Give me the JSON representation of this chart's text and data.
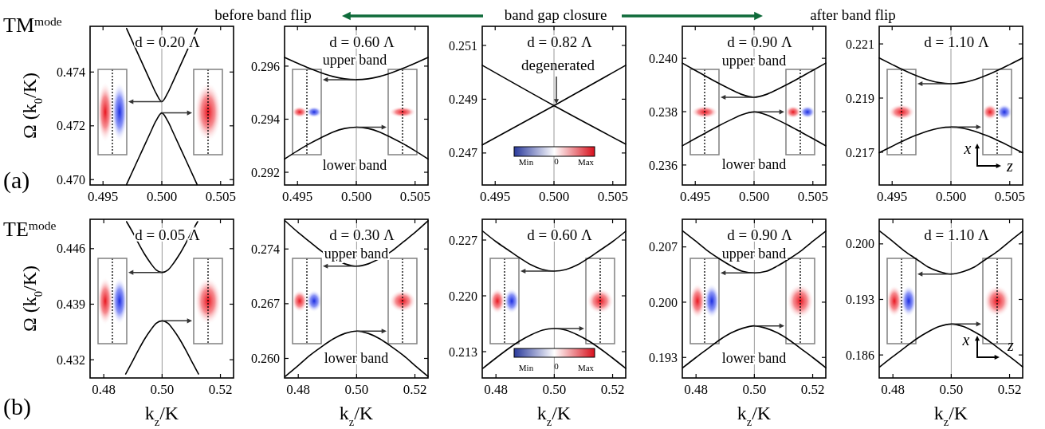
{
  "chart_data": [
    {
      "type": "line",
      "title": "d = 0.20 Λ",
      "ylabel": "Ω (k$_{0}$/K)",
      "xlim": [
        0.4939,
        0.5061
      ],
      "ylim": [
        0.4698,
        0.4757
      ],
      "xticks": [
        {
          "value": 0.495,
          "label": "0.495"
        },
        {
          "value": 0.5,
          "label": "0.500"
        },
        {
          "value": 0.505,
          "label": "0.505"
        }
      ],
      "yticks": [
        {
          "value": 0.47,
          "label": "0.470"
        },
        {
          "value": 0.472,
          "label": "0.472"
        },
        {
          "value": 0.474,
          "label": "0.474"
        }
      ],
      "series": [
        {
          "color": "#000000",
          "x": [
            0.497,
            0.498,
            0.499,
            0.4995,
            0.5,
            0.5005,
            0.501,
            0.502,
            0.503
          ],
          "values": [
            0.47562,
            0.47465,
            0.47369,
            0.47322,
            0.4729,
            0.47322,
            0.47369,
            0.47465,
            0.47562
          ]
        },
        {
          "color": "#000000",
          "x": [
            0.497,
            0.498,
            0.499,
            0.4995,
            0.5,
            0.5005,
            0.501,
            0.502,
            0.503
          ],
          "values": [
            0.46982,
            0.47077,
            0.47172,
            0.47218,
            0.47248,
            0.47218,
            0.47172,
            0.47077,
            0.46982
          ]
        }
      ],
      "ref_lines": [
        {
          "axis": "x",
          "value": 0.5,
          "color": "#999999"
        }
      ],
      "annotations": [
        "TM$^{mode}$",
        "(a)",
        "before band flip"
      ]
    },
    {
      "type": "line",
      "title": "d = 0.60 Λ",
      "xlim": [
        0.4939,
        0.5061
      ],
      "ylim": [
        0.29152,
        0.2975
      ],
      "xticks": [
        {
          "value": 0.495,
          "label": "0.495"
        },
        {
          "value": 0.5,
          "label": "0.500"
        },
        {
          "value": 0.505,
          "label": "0.505"
        }
      ],
      "yticks": [
        {
          "value": 0.292,
          "label": "0.292"
        },
        {
          "value": 0.294,
          "label": "0.294"
        },
        {
          "value": 0.296,
          "label": "0.296"
        }
      ],
      "series": [
        {
          "color": "#000000",
          "x": [
            0.4939,
            0.495,
            0.496,
            0.497,
            0.498,
            0.499,
            0.5,
            0.501,
            0.502,
            0.503,
            0.504,
            0.505,
            0.5061
          ],
          "values": [
            0.29633,
            0.29611,
            0.29592,
            0.29575,
            0.29561,
            0.29552,
            0.29549,
            0.29552,
            0.29561,
            0.29575,
            0.29592,
            0.29611,
            0.29633
          ]
        },
        {
          "color": "#000000",
          "x": [
            0.4939,
            0.495,
            0.496,
            0.497,
            0.498,
            0.499,
            0.5,
            0.501,
            0.502,
            0.503,
            0.504,
            0.505,
            0.5061
          ],
          "values": [
            0.2925,
            0.29281,
            0.29307,
            0.2933,
            0.29351,
            0.29365,
            0.2937,
            0.29365,
            0.29351,
            0.2933,
            0.29307,
            0.29281,
            0.2925
          ]
        }
      ],
      "ref_lines": [
        {
          "axis": "x",
          "value": 0.5,
          "color": "#999999"
        }
      ],
      "annotations": [
        "upper band",
        "lower band"
      ]
    },
    {
      "type": "line",
      "title": "d = 0.82 Λ",
      "xlim": [
        0.4939,
        0.5061
      ],
      "ylim": [
        0.24581,
        0.25171
      ],
      "xticks": [
        {
          "value": 0.495,
          "label": "0.495"
        },
        {
          "value": 0.5,
          "label": "0.500"
        },
        {
          "value": 0.505,
          "label": "0.505"
        }
      ],
      "yticks": [
        {
          "value": 0.247,
          "label": "0.247"
        },
        {
          "value": 0.249,
          "label": "0.249"
        },
        {
          "value": 0.251,
          "label": "0.251"
        }
      ],
      "series": [
        {
          "color": "#000000",
          "x": [
            0.4939,
            0.5,
            0.5061
          ],
          "values": [
            0.25026,
            0.24876,
            0.24733
          ]
        },
        {
          "color": "#000000",
          "x": [
            0.4939,
            0.5,
            0.5061
          ],
          "values": [
            0.2473,
            0.24876,
            0.25026
          ]
        }
      ],
      "ref_lines": [
        {
          "axis": "x",
          "value": 0.5,
          "color": "#999999"
        }
      ],
      "annotations": [
        "band gap closure",
        "degenerated",
        "Min",
        "0",
        "Max"
      ]
    },
    {
      "type": "line",
      "title": "d = 0.90 Λ",
      "xlim": [
        0.4939,
        0.5061
      ],
      "ylim": [
        0.23525,
        0.2412
      ],
      "xticks": [
        {
          "value": 0.495,
          "label": "0.495"
        },
        {
          "value": 0.5,
          "label": "0.500"
        },
        {
          "value": 0.505,
          "label": "0.505"
        }
      ],
      "yticks": [
        {
          "value": 0.236,
          "label": "0.236"
        },
        {
          "value": 0.238,
          "label": "0.238"
        },
        {
          "value": 0.24,
          "label": "0.240"
        }
      ],
      "series": [
        {
          "color": "#000000",
          "x": [
            0.4939,
            0.495,
            0.496,
            0.497,
            0.498,
            0.499,
            0.5,
            0.501,
            0.502,
            0.503,
            0.504,
            0.505,
            0.5061
          ],
          "values": [
            0.23982,
            0.23955,
            0.2393,
            0.23906,
            0.23884,
            0.23864,
            0.23854,
            0.23864,
            0.23884,
            0.23906,
            0.2393,
            0.23955,
            0.23982
          ]
        },
        {
          "color": "#000000",
          "x": [
            0.4939,
            0.495,
            0.496,
            0.497,
            0.498,
            0.499,
            0.5,
            0.501,
            0.502,
            0.503,
            0.504,
            0.505,
            0.5061
          ],
          "values": [
            0.23672,
            0.23699,
            0.23723,
            0.23747,
            0.23769,
            0.23789,
            0.23799,
            0.23789,
            0.23769,
            0.23747,
            0.23723,
            0.23699,
            0.23672
          ]
        }
      ],
      "ref_lines": [
        {
          "axis": "x",
          "value": 0.5,
          "color": "#999999"
        }
      ],
      "annotations": [
        "upper band",
        "lower band"
      ]
    },
    {
      "type": "line",
      "title": "d = 1.10 Λ",
      "xlim": [
        0.4939,
        0.5061
      ],
      "ylim": [
        0.21579,
        0.22165
      ],
      "xticks": [
        {
          "value": 0.495,
          "label": "0.495"
        },
        {
          "value": 0.5,
          "label": "0.500"
        },
        {
          "value": 0.505,
          "label": "0.505"
        }
      ],
      "yticks": [
        {
          "value": 0.217,
          "label": "0.217"
        },
        {
          "value": 0.219,
          "label": "0.219"
        },
        {
          "value": 0.221,
          "label": "0.221"
        }
      ],
      "series": [
        {
          "color": "#000000",
          "x": [
            0.4939,
            0.495,
            0.496,
            0.497,
            0.498,
            0.499,
            0.5,
            0.501,
            0.502,
            0.503,
            0.504,
            0.505,
            0.5061
          ],
          "values": [
            0.22048,
            0.22024,
            0.22003,
            0.21984,
            0.21968,
            0.21957,
            0.21953,
            0.21957,
            0.21968,
            0.21984,
            0.22003,
            0.22024,
            0.22048
          ]
        },
        {
          "color": "#000000",
          "x": [
            0.4939,
            0.495,
            0.496,
            0.497,
            0.498,
            0.499,
            0.5,
            0.501,
            0.502,
            0.503,
            0.504,
            0.505,
            0.5061
          ],
          "values": [
            0.21698,
            0.21722,
            0.21743,
            0.21762,
            0.21778,
            0.21789,
            0.21793,
            0.21789,
            0.21778,
            0.21762,
            0.21743,
            0.21722,
            0.21698
          ]
        }
      ],
      "ref_lines": [
        {
          "axis": "x",
          "value": 0.5,
          "color": "#999999"
        }
      ],
      "annotations": [
        "after band flip",
        "x",
        "z"
      ]
    },
    {
      "type": "line",
      "title": "d = 0.05 Λ",
      "ylabel": "Ω (k$_{0}$/K)",
      "xlabel": "k$_{z}$/K",
      "xlim": [
        0.4753,
        0.5245
      ],
      "ylim": [
        0.4297,
        0.4497
      ],
      "xticks": [
        {
          "value": 0.48,
          "label": "0.48"
        },
        {
          "value": 0.5,
          "label": "0.50"
        },
        {
          "value": 0.52,
          "label": "0.52"
        }
      ],
      "yticks": [
        {
          "value": 0.432,
          "label": "0.432"
        },
        {
          "value": 0.439,
          "label": "0.439"
        },
        {
          "value": 0.446,
          "label": "0.446"
        }
      ],
      "series": [
        {
          "color": "#000000",
          "x": [
            0.4878,
            0.49,
            0.492,
            0.494,
            0.496,
            0.498,
            0.5,
            0.502,
            0.504,
            0.506,
            0.508,
            0.51,
            0.5122
          ],
          "values": [
            0.4494,
            0.448,
            0.4466,
            0.4453,
            0.4442,
            0.4433,
            0.443,
            0.4433,
            0.4442,
            0.4453,
            0.4466,
            0.448,
            0.4494
          ]
        },
        {
          "color": "#000000",
          "x": [
            0.4875,
            0.49,
            0.492,
            0.494,
            0.496,
            0.498,
            0.5,
            0.502,
            0.504,
            0.506,
            0.508,
            0.51,
            0.5125
          ],
          "values": [
            0.4302,
            0.4319,
            0.4333,
            0.4346,
            0.4357,
            0.4366,
            0.4369,
            0.4366,
            0.4357,
            0.4346,
            0.4333,
            0.4319,
            0.4302
          ]
        }
      ],
      "ref_lines": [
        {
          "axis": "x",
          "value": 0.5,
          "color": "#999999"
        }
      ],
      "annotations": [
        "TE$^{mode}$",
        "(b)"
      ]
    },
    {
      "type": "line",
      "title": "d = 0.30 Λ",
      "xlabel": "k$_{z}$/K",
      "xlim": [
        0.4753,
        0.5245
      ],
      "ylim": [
        0.2575,
        0.2778
      ],
      "xticks": [
        {
          "value": 0.48,
          "label": "0.48"
        },
        {
          "value": 0.5,
          "label": "0.50"
        },
        {
          "value": 0.52,
          "label": "0.52"
        }
      ],
      "yticks": [
        {
          "value": 0.26,
          "label": "0.260"
        },
        {
          "value": 0.267,
          "label": "0.267"
        },
        {
          "value": 0.274,
          "label": "0.274"
        }
      ],
      "series": [
        {
          "color": "#000000",
          "x": [
            0.4755,
            0.48,
            0.484,
            0.488,
            0.492,
            0.496,
            0.5,
            0.504,
            0.508,
            0.512,
            0.516,
            0.52,
            0.5245
          ],
          "values": [
            0.2776,
            0.2761,
            0.2749,
            0.2737,
            0.2728,
            0.2721,
            0.2718,
            0.2721,
            0.2728,
            0.2737,
            0.2749,
            0.2761,
            0.2776
          ]
        },
        {
          "color": "#000000",
          "x": [
            0.4755,
            0.48,
            0.484,
            0.488,
            0.492,
            0.496,
            0.5,
            0.504,
            0.508,
            0.512,
            0.516,
            0.52,
            0.5245
          ],
          "values": [
            0.2577,
            0.2591,
            0.2604,
            0.2615,
            0.2625,
            0.2632,
            0.2635,
            0.2632,
            0.2625,
            0.2615,
            0.2604,
            0.2591,
            0.2577
          ]
        }
      ],
      "ref_lines": [
        {
          "axis": "x",
          "value": 0.5,
          "color": "#999999"
        }
      ],
      "annotations": [
        "upper band",
        "lower band"
      ]
    },
    {
      "type": "line",
      "title": "d = 0.60 Λ",
      "xlabel": "k$_{z}$/K",
      "xlim": [
        0.4753,
        0.5245
      ],
      "ylim": [
        0.2097,
        0.2296
      ],
      "xticks": [
        {
          "value": 0.48,
          "label": "0.48"
        },
        {
          "value": 0.5,
          "label": "0.50"
        },
        {
          "value": 0.52,
          "label": "0.52"
        }
      ],
      "yticks": [
        {
          "value": 0.213,
          "label": "0.213"
        },
        {
          "value": 0.22,
          "label": "0.220"
        },
        {
          "value": 0.227,
          "label": "0.227"
        }
      ],
      "series": [
        {
          "color": "#000000",
          "x": [
            0.4755,
            0.48,
            0.484,
            0.488,
            0.492,
            0.496,
            0.5,
            0.504,
            0.508,
            0.512,
            0.516,
            0.52,
            0.5245
          ],
          "values": [
            0.2281,
            0.2268,
            0.2258,
            0.2248,
            0.2239,
            0.2233,
            0.2231,
            0.2233,
            0.2239,
            0.2248,
            0.2258,
            0.2268,
            0.2281
          ]
        },
        {
          "color": "#000000",
          "x": [
            0.4755,
            0.48,
            0.484,
            0.488,
            0.492,
            0.496,
            0.5,
            0.504,
            0.508,
            0.512,
            0.516,
            0.52,
            0.5245
          ],
          "values": [
            0.2109,
            0.2122,
            0.2133,
            0.2143,
            0.2151,
            0.2157,
            0.2159,
            0.2157,
            0.2151,
            0.2143,
            0.2133,
            0.2122,
            0.2109
          ]
        }
      ],
      "ref_lines": [
        {
          "axis": "x",
          "value": 0.5,
          "color": "#999999"
        }
      ],
      "annotations": [
        "Min",
        "0",
        "Max"
      ]
    },
    {
      "type": "line",
      "title": "d = 0.90 Λ",
      "xlabel": "k$_{z}$/K",
      "xlim": [
        0.4753,
        0.5245
      ],
      "ylim": [
        0.1904,
        0.2105
      ],
      "xticks": [
        {
          "value": 0.48,
          "label": "0.48"
        },
        {
          "value": 0.5,
          "label": "0.50"
        },
        {
          "value": 0.52,
          "label": "0.52"
        }
      ],
      "yticks": [
        {
          "value": 0.193,
          "label": "0.193"
        },
        {
          "value": 0.2,
          "label": "0.200"
        },
        {
          "value": 0.207,
          "label": "0.207"
        }
      ],
      "series": [
        {
          "color": "#000000",
          "x": [
            0.4755,
            0.48,
            0.484,
            0.488,
            0.492,
            0.496,
            0.5,
            0.504,
            0.508,
            0.512,
            0.516,
            0.52,
            0.5245
          ],
          "values": [
            0.209,
            0.2077,
            0.2065,
            0.2055,
            0.2046,
            0.2039,
            0.2037,
            0.2039,
            0.2046,
            0.2055,
            0.2065,
            0.2077,
            0.209
          ]
        },
        {
          "color": "#000000",
          "x": [
            0.4755,
            0.48,
            0.484,
            0.488,
            0.492,
            0.496,
            0.5,
            0.504,
            0.508,
            0.512,
            0.516,
            0.52,
            0.5245
          ],
          "values": [
            0.1917,
            0.193,
            0.1941,
            0.1952,
            0.1961,
            0.1967,
            0.197,
            0.1967,
            0.1961,
            0.1952,
            0.1941,
            0.193,
            0.1917
          ]
        }
      ],
      "ref_lines": [
        {
          "axis": "x",
          "value": 0.5,
          "color": "#999999"
        }
      ],
      "annotations": [
        "upper band",
        "lower band"
      ]
    },
    {
      "type": "line",
      "title": "d = 1.10 Λ",
      "xlabel": "k$_{z}$/K",
      "xlim": [
        0.4753,
        0.5245
      ],
      "ylim": [
        0.1831,
        0.2031
      ],
      "xticks": [
        {
          "value": 0.48,
          "label": "0.48"
        },
        {
          "value": 0.5,
          "label": "0.50"
        },
        {
          "value": 0.52,
          "label": "0.52"
        }
      ],
      "yticks": [
        {
          "value": 0.186,
          "label": "0.186"
        },
        {
          "value": 0.193,
          "label": "0.193"
        },
        {
          "value": 0.2,
          "label": "0.200"
        }
      ],
      "series": [
        {
          "color": "#000000",
          "x": [
            0.4755,
            0.48,
            0.484,
            0.488,
            0.492,
            0.496,
            0.5,
            0.504,
            0.508,
            0.512,
            0.516,
            0.52,
            0.5245
          ],
          "values": [
            0.2016,
            0.2003,
            0.1991,
            0.1981,
            0.1971,
            0.1965,
            0.1962,
            0.1965,
            0.1971,
            0.1981,
            0.1991,
            0.2003,
            0.2016
          ]
        },
        {
          "color": "#000000",
          "x": [
            0.4755,
            0.48,
            0.484,
            0.488,
            0.492,
            0.496,
            0.5,
            0.504,
            0.508,
            0.512,
            0.516,
            0.52,
            0.5245
          ],
          "values": [
            0.1845,
            0.1858,
            0.1869,
            0.188,
            0.1889,
            0.1896,
            0.1899,
            0.1896,
            0.1889,
            0.188,
            0.1869,
            0.1858,
            0.1845
          ]
        }
      ],
      "ref_lines": [
        {
          "axis": "x",
          "value": 0.5,
          "color": "#999999"
        }
      ],
      "annotations": [
        "x",
        "z"
      ]
    }
  ]
}
